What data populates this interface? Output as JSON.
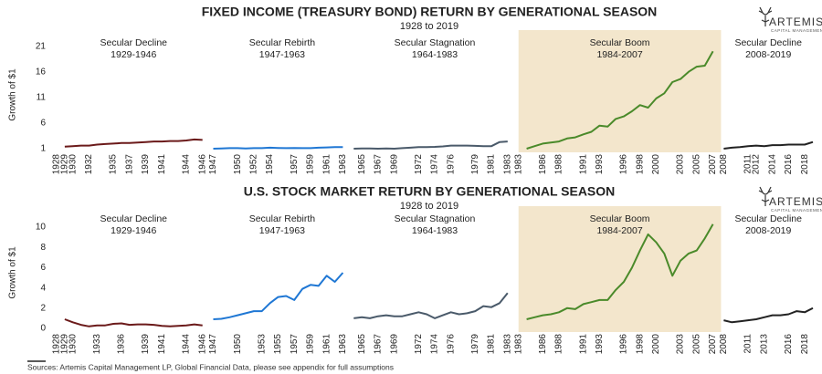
{
  "chart_data": [
    {
      "type": "line",
      "title": "FIXED INCOME (TREASURY BOND) RETURN BY GENERATIONAL SEASON",
      "subtitle": "1928 to 2019",
      "y_label": "Growth of $1",
      "logo": {
        "name": "ARTEMIS",
        "tagline": "CAPITAL MANAGEMENT"
      },
      "ylim": [
        1,
        22
      ],
      "yticks": [
        1,
        6,
        11,
        16,
        21
      ],
      "series": [
        {
          "name": "Secular Decline",
          "period": "1929-1946",
          "color": "#6b1a1a",
          "xlim": [
            1928,
            1947
          ],
          "xticks": [
            1928,
            1929,
            1930,
            1932,
            1935,
            1937,
            1939,
            1941,
            1944,
            1946
          ],
          "x": [
            1929,
            1930,
            1931,
            1932,
            1933,
            1934,
            1935,
            1936,
            1937,
            1938,
            1939,
            1940,
            1941,
            1942,
            1943,
            1944,
            1945,
            1946
          ],
          "values": [
            1.4,
            1.5,
            1.6,
            1.6,
            1.8,
            1.9,
            2.0,
            2.1,
            2.1,
            2.2,
            2.3,
            2.4,
            2.4,
            2.5,
            2.5,
            2.6,
            2.8,
            2.7
          ]
        },
        {
          "name": "Secular Rebirth",
          "period": "1947-1963",
          "color": "#1f77d4",
          "xlim": [
            1947,
            1964
          ],
          "xticks": [
            1947,
            1950,
            1952,
            1954,
            1957,
            1959,
            1961,
            1963
          ],
          "x": [
            1947,
            1948,
            1949,
            1950,
            1951,
            1952,
            1953,
            1954,
            1955,
            1956,
            1957,
            1958,
            1959,
            1960,
            1961,
            1962,
            1963
          ],
          "values": [
            1.0,
            1.05,
            1.1,
            1.1,
            1.05,
            1.1,
            1.1,
            1.2,
            1.15,
            1.1,
            1.15,
            1.1,
            1.1,
            1.2,
            1.25,
            1.3,
            1.3
          ]
        },
        {
          "name": "Secular Stagnation",
          "period": "1964-1983",
          "color": "#4a5a6a",
          "xlim": [
            1964,
            1984
          ],
          "xticks": [
            1965,
            1967,
            1969,
            1972,
            1974,
            1976,
            1979,
            1981,
            1983
          ],
          "x": [
            1964,
            1965,
            1966,
            1967,
            1968,
            1969,
            1970,
            1971,
            1972,
            1973,
            1974,
            1975,
            1976,
            1977,
            1978,
            1979,
            1980,
            1981,
            1982,
            1983
          ],
          "values": [
            1.0,
            1.05,
            1.05,
            1.0,
            1.05,
            1.0,
            1.1,
            1.2,
            1.3,
            1.3,
            1.35,
            1.45,
            1.6,
            1.6,
            1.6,
            1.55,
            1.5,
            1.5,
            2.3,
            2.4
          ]
        },
        {
          "name": "Secular Boom",
          "period": "1984-2007",
          "color": "#4a8a2a",
          "shade": "#f3e6cc",
          "xlim": [
            1983,
            2008
          ],
          "xticks": [
            1983,
            1986,
            1988,
            1991,
            1993,
            1996,
            1998,
            2000,
            2003,
            2005,
            2007
          ],
          "x": [
            1984,
            1985,
            1986,
            1987,
            1988,
            1989,
            1990,
            1991,
            1992,
            1993,
            1994,
            1995,
            1996,
            1997,
            1998,
            1999,
            2000,
            2001,
            2002,
            2003,
            2004,
            2005,
            2006,
            2007
          ],
          "values": [
            1.0,
            1.5,
            2.0,
            2.2,
            2.4,
            3.0,
            3.2,
            3.8,
            4.3,
            5.5,
            5.3,
            6.8,
            7.3,
            8.3,
            9.5,
            9.0,
            10.8,
            11.8,
            14.0,
            14.6,
            16.0,
            17.0,
            17.2,
            20.0
          ]
        },
        {
          "name": "Secular Decline",
          "period": "2008-2019",
          "color": "#222222",
          "xlim": [
            2008,
            2019
          ],
          "xticks": [
            2008,
            2011,
            2012,
            2014,
            2016,
            2018
          ],
          "x": [
            2008,
            2009,
            2010,
            2011,
            2012,
            2013,
            2014,
            2015,
            2016,
            2017,
            2018,
            2019
          ],
          "values": [
            1.0,
            1.2,
            1.3,
            1.5,
            1.6,
            1.5,
            1.7,
            1.7,
            1.8,
            1.8,
            1.8,
            2.3
          ]
        }
      ]
    },
    {
      "type": "line",
      "title": "U.S. STOCK MARKET RETURN BY GENERATIONAL SEASON",
      "subtitle": "1928 to 2019",
      "y_label": "Growth of $1",
      "logo": {
        "name": "ARTEMIS",
        "tagline": "CAPITAL MANAGEMENT"
      },
      "ylim": [
        0,
        11
      ],
      "yticks": [
        0,
        2,
        4,
        6,
        8,
        10
      ],
      "series": [
        {
          "name": "Secular Decline",
          "period": "1929-1946",
          "color": "#6b1a1a",
          "xlim": [
            1928,
            1947
          ],
          "xticks": [
            1928,
            1929,
            1930,
            1933,
            1936,
            1939,
            1941,
            1944,
            1946
          ],
          "x": [
            1929,
            1930,
            1931,
            1932,
            1933,
            1934,
            1935,
            1936,
            1937,
            1938,
            1939,
            1940,
            1941,
            1942,
            1943,
            1944,
            1945,
            1946
          ],
          "values": [
            0.9,
            0.6,
            0.35,
            0.2,
            0.3,
            0.3,
            0.45,
            0.5,
            0.35,
            0.4,
            0.4,
            0.35,
            0.25,
            0.2,
            0.25,
            0.3,
            0.4,
            0.3
          ]
        },
        {
          "name": "Secular Rebirth",
          "period": "1947-1963",
          "color": "#1f77d4",
          "xlim": [
            1947,
            1964
          ],
          "xticks": [
            1947,
            1950,
            1953,
            1955,
            1957,
            1959,
            1961,
            1963
          ],
          "x": [
            1947,
            1948,
            1949,
            1950,
            1951,
            1952,
            1953,
            1954,
            1955,
            1956,
            1957,
            1958,
            1959,
            1960,
            1961,
            1962,
            1963
          ],
          "values": [
            0.9,
            0.95,
            1.1,
            1.3,
            1.5,
            1.7,
            1.7,
            2.5,
            3.1,
            3.2,
            2.8,
            3.9,
            4.3,
            4.2,
            5.2,
            4.6,
            5.5
          ]
        },
        {
          "name": "Secular Stagnation",
          "period": "1964-1983",
          "color": "#4a5a6a",
          "xlim": [
            1964,
            1984
          ],
          "xticks": [
            1965,
            1967,
            1969,
            1972,
            1974,
            1976,
            1979,
            1981,
            1983
          ],
          "x": [
            1964,
            1965,
            1966,
            1967,
            1968,
            1969,
            1970,
            1971,
            1972,
            1973,
            1974,
            1975,
            1976,
            1977,
            1978,
            1979,
            1980,
            1981,
            1982,
            1983
          ],
          "values": [
            1.0,
            1.1,
            1.0,
            1.2,
            1.3,
            1.2,
            1.2,
            1.4,
            1.6,
            1.4,
            1.0,
            1.3,
            1.6,
            1.4,
            1.5,
            1.7,
            2.2,
            2.1,
            2.5,
            3.5
          ]
        },
        {
          "name": "Secular Boom",
          "period": "1984-2007",
          "color": "#4a8a2a",
          "shade": "#f3e6cc",
          "xlim": [
            1983,
            2008
          ],
          "xticks": [
            1983,
            1986,
            1988,
            1991,
            1993,
            1996,
            1998,
            2000,
            2003,
            2005,
            2007
          ],
          "x": [
            1984,
            1985,
            1986,
            1987,
            1988,
            1989,
            1990,
            1991,
            1992,
            1993,
            1994,
            1995,
            1996,
            1997,
            1998,
            1999,
            2000,
            2001,
            2002,
            2003,
            2004,
            2005,
            2006,
            2007
          ],
          "values": [
            0.9,
            1.1,
            1.3,
            1.4,
            1.6,
            2.0,
            1.9,
            2.4,
            2.6,
            2.8,
            2.8,
            3.8,
            4.6,
            6.0,
            7.7,
            9.3,
            8.5,
            7.4,
            5.2,
            6.7,
            7.4,
            7.7,
            8.9,
            10.3
          ]
        },
        {
          "name": "Secular Decline",
          "period": "2008-2019",
          "color": "#222222",
          "xlim": [
            2008,
            2019
          ],
          "xticks": [
            2008,
            2011,
            2013,
            2016,
            2018
          ],
          "x": [
            2008,
            2009,
            2010,
            2011,
            2012,
            2013,
            2014,
            2015,
            2016,
            2017,
            2018,
            2019
          ],
          "values": [
            0.8,
            0.6,
            0.7,
            0.8,
            0.9,
            1.1,
            1.3,
            1.3,
            1.4,
            1.7,
            1.6,
            2.0
          ]
        }
      ]
    }
  ],
  "footnote": "Sources: Artemis Capital Management LP, Global Financial Data, please see appendix for full assumptions"
}
